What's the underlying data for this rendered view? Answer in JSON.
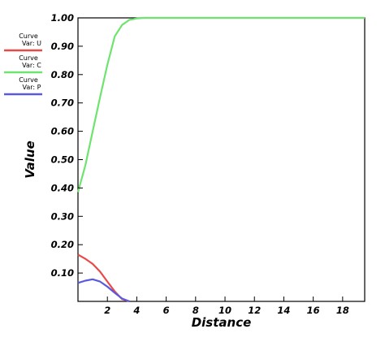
{
  "chart_data": {
    "type": "line",
    "xlabel": "Distance",
    "ylabel": "Value",
    "xlim": [
      0,
      19.5
    ],
    "ylim": [
      0,
      1.0
    ],
    "xticks": [
      2,
      4,
      6,
      8,
      10,
      12,
      14,
      16,
      18
    ],
    "yticks": [
      0.1,
      0.2,
      0.3,
      0.4,
      0.5,
      0.6,
      0.7,
      0.8,
      0.9,
      1.0
    ],
    "grid": false,
    "legend_position": "left",
    "series": [
      {
        "name": "Var: U",
        "legend_title": "Curve",
        "color": "#e84a4a",
        "x": [
          0.0,
          0.5,
          1.0,
          1.5,
          2.0,
          2.5,
          3.0,
          3.5
        ],
        "y": [
          0.165,
          0.15,
          0.132,
          0.105,
          0.07,
          0.035,
          0.008,
          0.0
        ]
      },
      {
        "name": "Var: C",
        "legend_title": "Curve",
        "color": "#6ee46e",
        "x": [
          0.0,
          0.5,
          1.0,
          1.5,
          2.0,
          2.5,
          3.0,
          3.5,
          4.0,
          4.5,
          5.0,
          6,
          8,
          10,
          12,
          14,
          16,
          18,
          19.5
        ],
        "y": [
          0.385,
          0.48,
          0.6,
          0.72,
          0.835,
          0.935,
          0.975,
          0.993,
          0.998,
          1.0,
          1.0,
          1.0,
          1.0,
          1.0,
          1.0,
          1.0,
          1.0,
          1.0,
          1.0
        ]
      },
      {
        "name": "Var: P",
        "legend_title": "Curve",
        "color": "#5a5ae0",
        "x": [
          0.0,
          0.5,
          1.0,
          1.5,
          2.0,
          2.5,
          3.0,
          3.5
        ],
        "y": [
          0.065,
          0.073,
          0.078,
          0.07,
          0.052,
          0.03,
          0.01,
          0.0
        ]
      }
    ]
  }
}
